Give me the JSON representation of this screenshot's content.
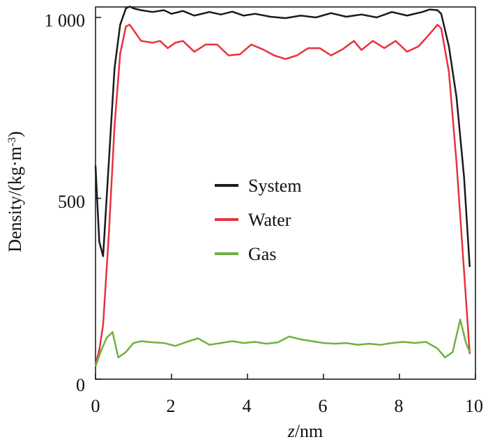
{
  "chart_data": {
    "type": "line",
    "xlabel_italic": "z",
    "xlabel_unit": "/nm",
    "ylabel": "Density/(kg·m",
    "ylabel_sup": "-3",
    "ylabel_close": ")",
    "xlim": [
      0,
      10
    ],
    "ylim": [
      0,
      1000
    ],
    "x_ticks": [
      "0",
      "2",
      "4",
      "6",
      "8",
      "10"
    ],
    "y_ticks": [
      "0",
      "500",
      "1 000"
    ],
    "legend": [
      "System",
      "Water",
      "Gas"
    ],
    "legend_position": "center-left",
    "colors": {
      "System": "#1a1a1a",
      "Water": "#e8323c",
      "Gas": "#6cb33e"
    },
    "series": [
      {
        "name": "System",
        "x": [
          0,
          0.1,
          0.2,
          0.35,
          0.5,
          0.65,
          0.8,
          0.9,
          1.0,
          1.2,
          1.5,
          1.8,
          2.0,
          2.3,
          2.6,
          3.0,
          3.3,
          3.6,
          3.9,
          4.2,
          4.6,
          5.0,
          5.4,
          5.8,
          6.2,
          6.6,
          7.0,
          7.4,
          7.8,
          8.2,
          8.6,
          8.8,
          9.0,
          9.1,
          9.3,
          9.5,
          9.7,
          9.85
        ],
        "values": [
          590,
          380,
          340,
          600,
          860,
          980,
          1025,
          1030,
          1025,
          1020,
          1015,
          1020,
          1010,
          1018,
          1005,
          1015,
          1008,
          1016,
          1005,
          1010,
          1002,
          998,
          1005,
          1000,
          1012,
          1002,
          1008,
          1000,
          1015,
          1005,
          1015,
          1022,
          1020,
          1010,
          920,
          780,
          560,
          310
        ]
      },
      {
        "name": "Water",
        "x": [
          0,
          0.1,
          0.2,
          0.35,
          0.5,
          0.65,
          0.8,
          0.9,
          1.0,
          1.2,
          1.5,
          1.7,
          1.9,
          2.1,
          2.3,
          2.6,
          2.9,
          3.2,
          3.5,
          3.8,
          4.1,
          4.4,
          4.7,
          5.0,
          5.3,
          5.6,
          5.9,
          6.2,
          6.5,
          6.8,
          7.0,
          7.3,
          7.6,
          7.9,
          8.2,
          8.5,
          8.8,
          9.0,
          9.1,
          9.3,
          9.5,
          9.7,
          9.85
        ],
        "values": [
          40,
          80,
          150,
          400,
          700,
          900,
          975,
          980,
          965,
          935,
          930,
          935,
          915,
          930,
          935,
          905,
          925,
          925,
          895,
          898,
          925,
          912,
          895,
          885,
          895,
          915,
          915,
          895,
          912,
          935,
          910,
          935,
          915,
          935,
          905,
          920,
          955,
          980,
          970,
          850,
          600,
          300,
          70
        ]
      },
      {
        "name": "Gas",
        "x": [
          0,
          0.15,
          0.3,
          0.45,
          0.6,
          0.8,
          1.0,
          1.2,
          1.5,
          1.8,
          2.1,
          2.4,
          2.7,
          3.0,
          3.3,
          3.6,
          3.9,
          4.2,
          4.5,
          4.8,
          5.1,
          5.4,
          5.7,
          6.0,
          6.3,
          6.6,
          6.9,
          7.2,
          7.5,
          7.8,
          8.1,
          8.4,
          8.7,
          9.0,
          9.2,
          9.4,
          9.6,
          9.75,
          9.85
        ],
        "values": [
          35,
          80,
          115,
          130,
          60,
          75,
          100,
          105,
          102,
          100,
          92,
          103,
          113,
          95,
          100,
          105,
          100,
          103,
          98,
          102,
          118,
          110,
          105,
          100,
          98,
          100,
          95,
          98,
          95,
          100,
          103,
          100,
          103,
          85,
          60,
          75,
          165,
          100,
          75
        ]
      }
    ]
  }
}
